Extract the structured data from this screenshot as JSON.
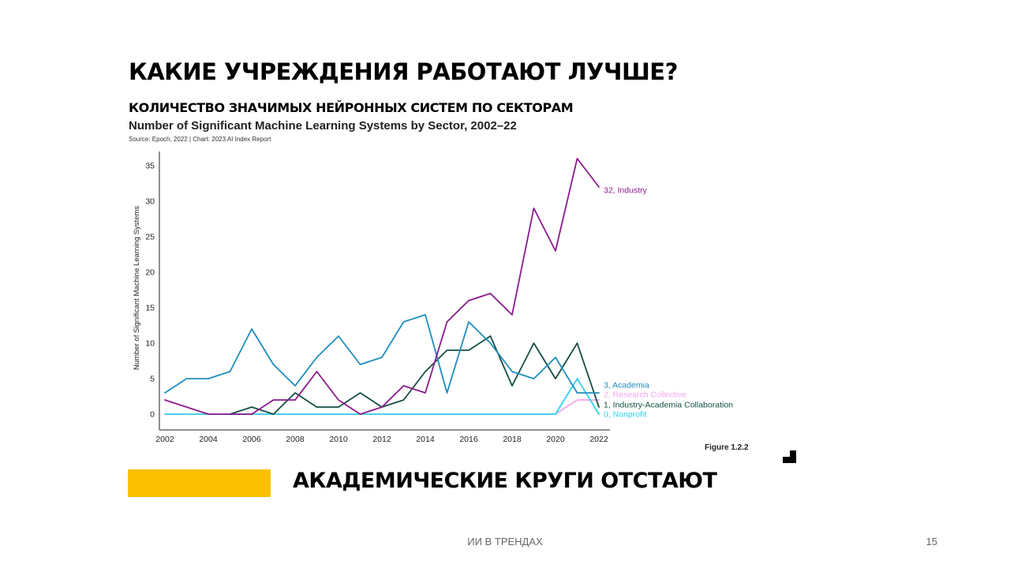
{
  "slide": {
    "headline": "КАКИЕ УЧРЕЖДЕНИЯ РАБОТАЮТ ЛУЧШЕ?",
    "subheadline": "КОЛИЧЕСТВО ЗНАЧИМЫХ НЕЙРОННЫХ СИСТЕМ ПО СЕКТОРАМ",
    "takeaway": "АКАДЕМИЧЕСКИЕ КРУГИ ОТСТАЮТ",
    "footer": "ИИ В ТРЕНДАХ",
    "page_number": "15",
    "figure_label": "Figure 1.2.2",
    "accent_color": "#fcc000"
  },
  "chart_data": {
    "type": "line",
    "title": "Number of Significant Machine Learning Systems by Sector, 2002–22",
    "source": "Source: Epoch, 2022 | Chart: 2023 AI Index Report",
    "ylabel": "Number of Significant Machine Learning Systems",
    "xlabel": "",
    "xlim": [
      2002,
      2022
    ],
    "ylim": [
      0,
      37
    ],
    "xticks": [
      "2002",
      "2004",
      "2006",
      "2008",
      "2010",
      "2012",
      "2014",
      "2016",
      "2018",
      "2020",
      "2022"
    ],
    "yticks": [
      "0",
      "5",
      "10",
      "15",
      "20",
      "25",
      "30",
      "35"
    ],
    "grid": false,
    "legend": "end-of-line labels",
    "x": [
      2002,
      2003,
      2004,
      2005,
      2006,
      2007,
      2008,
      2009,
      2010,
      2011,
      2012,
      2013,
      2014,
      2015,
      2016,
      2017,
      2018,
      2019,
      2020,
      2021,
      2022
    ],
    "series": [
      {
        "name": "Industry",
        "end_label": "32, Industry",
        "color": "#8b1a8c",
        "values": [
          2,
          1,
          0,
          0,
          0,
          2,
          2,
          6,
          2,
          0,
          1,
          4,
          3,
          13,
          16,
          17,
          14,
          29,
          23,
          36,
          32
        ]
      },
      {
        "name": "Academia",
        "end_label": "3, Academia",
        "color": "#1f8dbe",
        "values": [
          3,
          5,
          5,
          6,
          12,
          7,
          4,
          8,
          11,
          7,
          8,
          13,
          14,
          3,
          13,
          10,
          6,
          5,
          8,
          3,
          3
        ]
      },
      {
        "name": "Research Collective",
        "end_label": "2, Research Collective",
        "color": "#f7a3ee",
        "values": [
          0,
          0,
          0,
          0,
          0,
          0,
          0,
          0,
          0,
          0,
          0,
          0,
          0,
          0,
          0,
          0,
          0,
          0,
          0,
          2,
          2
        ]
      },
      {
        "name": "Industry-Academia Collaboration",
        "end_label": "1, Industry-Academia Collaboration",
        "color": "#134f44",
        "values": [
          null,
          null,
          null,
          0,
          1,
          0,
          3,
          1,
          1,
          3,
          1,
          2,
          6,
          9,
          9,
          11,
          4,
          10,
          5,
          10,
          1
        ]
      },
      {
        "name": "Nonprofit",
        "end_label": "0, Nonprofit",
        "color": "#2ed4ee",
        "values": [
          0,
          0,
          0,
          0,
          0,
          0,
          0,
          0,
          0,
          0,
          0,
          0,
          0,
          0,
          0,
          0,
          0,
          0,
          0,
          5,
          0
        ]
      }
    ]
  }
}
